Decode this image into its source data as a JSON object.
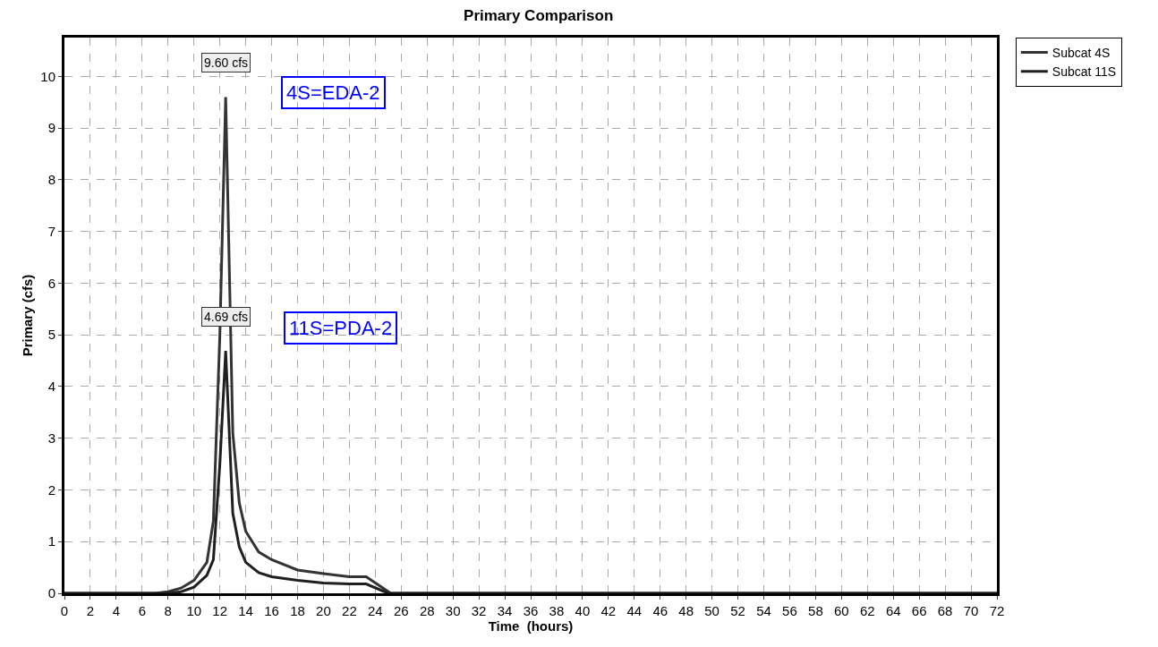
{
  "chart_data": {
    "type": "line",
    "title": "Primary Comparison",
    "xlabel": "Time  (hours)",
    "ylabel": "Primary (cfs)",
    "series": [
      {
        "name": "Subcat 4S",
        "color": "#333333",
        "x": [
          0,
          7,
          8,
          9,
          10,
          11,
          11.5,
          12,
          12.45,
          13,
          13.5,
          14,
          15,
          16,
          18,
          20,
          22,
          23.3,
          25.2,
          72
        ],
        "values": [
          0,
          0,
          0.03,
          0.1,
          0.25,
          0.6,
          1.4,
          5,
          9.6,
          3.1,
          1.75,
          1.2,
          0.8,
          0.65,
          0.45,
          0.38,
          0.32,
          0.32,
          0,
          0
        ]
      },
      {
        "name": "Subcat 11S",
        "color": "#1f1f1f",
        "x": [
          0,
          8,
          9,
          10,
          11,
          11.5,
          12,
          12.45,
          13,
          13.5,
          14,
          15,
          16,
          18,
          20,
          22,
          23.3,
          25,
          72
        ],
        "values": [
          0,
          0,
          0.03,
          0.12,
          0.35,
          0.65,
          2.5,
          4.69,
          1.55,
          0.9,
          0.6,
          0.4,
          0.32,
          0.25,
          0.2,
          0.18,
          0.18,
          0,
          0
        ]
      }
    ],
    "annotations": [
      {
        "text": "9.60 cfs",
        "x": 12.45,
        "y": 9.6
      },
      "4S=EDA-2",
      {
        "text": "4.69 cfs",
        "x": 12.45,
        "y": 4.69
      },
      "11S=PDA-2"
    ],
    "xlim": [
      0,
      72
    ],
    "xticks": [
      0,
      2,
      4,
      6,
      8,
      10,
      12,
      14,
      16,
      18,
      20,
      22,
      24,
      26,
      28,
      30,
      32,
      34,
      36,
      38,
      40,
      42,
      44,
      46,
      48,
      50,
      52,
      54,
      56,
      58,
      60,
      62,
      64,
      66,
      68,
      70,
      72
    ],
    "ylim": [
      0,
      10.75
    ],
    "yticks": [
      0,
      1,
      2,
      3,
      4,
      5,
      6,
      7,
      8,
      9,
      10
    ],
    "grid": true,
    "legend": "top right",
    "line_style": "solid",
    "marker": "none"
  }
}
